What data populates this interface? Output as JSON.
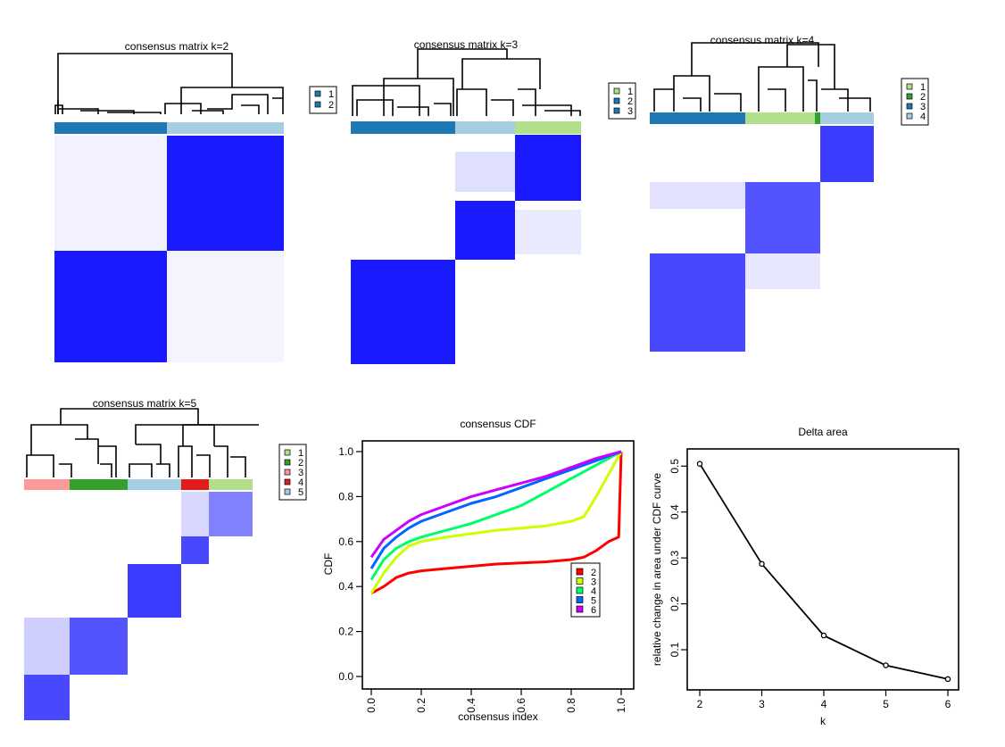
{
  "colors": {
    "dark_blue": "#1f78b4",
    "light_blue": "#a6cee3",
    "light_green": "#b2df8a",
    "green": "#33a02c",
    "pink": "#fb9a99",
    "red": "#e31a1c",
    "matrix_blue": "#0000ff",
    "cdf_lines": [
      "#ff0000",
      "#ccff00",
      "#00ff66",
      "#0066ff",
      "#cc00ff"
    ]
  },
  "chart_data": [
    {
      "type": "heatmap",
      "title": "consensus matrix k=2",
      "legend": [
        "1",
        "2"
      ],
      "legend_colors": [
        "#1f78b4",
        "#1f78b4"
      ],
      "cluster_bar": [
        {
          "cluster": 1,
          "fraction": 0.49,
          "color": "#1f78b4"
        },
        {
          "cluster": 2,
          "fraction": 0.51,
          "color": "#a6cee3"
        }
      ]
    },
    {
      "type": "heatmap",
      "title": "consensus matrix k=3",
      "legend": [
        "1",
        "2",
        "3"
      ],
      "legend_colors": [
        "#b2df8a",
        "#1f78b4",
        "#1f78b4"
      ],
      "cluster_bar": [
        {
          "cluster": 1,
          "fraction": 0.455,
          "color": "#1f78b4"
        },
        {
          "cluster": 2,
          "fraction": 0.26,
          "color": "#a6cee3"
        },
        {
          "cluster": 3,
          "fraction": 0.285,
          "color": "#b2df8a"
        }
      ]
    },
    {
      "type": "heatmap",
      "title": "consensus matrix k=4",
      "legend": [
        "1",
        "2",
        "3",
        "4"
      ],
      "legend_colors": [
        "#b2df8a",
        "#33a02c",
        "#1f78b4",
        "#a6cee3"
      ],
      "cluster_bar": [
        {
          "cluster": 1,
          "fraction": 0.43,
          "color": "#1f78b4"
        },
        {
          "cluster": 2,
          "fraction": 0.31,
          "color": "#b2df8a"
        },
        {
          "cluster": 3,
          "fraction": 0.025,
          "color": "#33a02c"
        },
        {
          "cluster": 4,
          "fraction": 0.235,
          "color": "#a6cee3"
        }
      ]
    },
    {
      "type": "heatmap",
      "title": "consensus matrix k=5",
      "legend": [
        "1",
        "2",
        "3",
        "4",
        "5"
      ],
      "legend_colors": [
        "#b2df8a",
        "#33a02c",
        "#fb9a99",
        "#e31a1c",
        "#a6cee3"
      ],
      "cluster_bar": [
        {
          "cluster": 1,
          "fraction": 0.2,
          "color": "#fb9a99"
        },
        {
          "cluster": 2,
          "fraction": 0.255,
          "color": "#33a02c"
        },
        {
          "cluster": 3,
          "fraction": 0.235,
          "color": "#a6cee3"
        },
        {
          "cluster": 4,
          "fraction": 0.12,
          "color": "#e31a1c"
        },
        {
          "cluster": 5,
          "fraction": 0.19,
          "color": "#b2df8a"
        }
      ]
    },
    {
      "type": "line",
      "title": "consensus CDF",
      "xlabel": "consensus index",
      "ylabel": "CDF",
      "xlim": [
        0,
        1
      ],
      "ylim": [
        0,
        1
      ],
      "x_ticks": [
        "0.0",
        "0.2",
        "0.4",
        "0.6",
        "0.8",
        "1.0"
      ],
      "y_ticks": [
        "0.0",
        "0.2",
        "0.4",
        "0.6",
        "0.8",
        "1.0"
      ],
      "legend_position": "right",
      "series": [
        {
          "name": "2",
          "color": "#ff0000",
          "x": [
            0,
            0.05,
            0.1,
            0.15,
            0.2,
            0.3,
            0.4,
            0.5,
            0.6,
            0.7,
            0.8,
            0.85,
            0.9,
            0.95,
            0.99,
            1.0
          ],
          "y": [
            0.37,
            0.4,
            0.44,
            0.46,
            0.47,
            0.48,
            0.49,
            0.5,
            0.505,
            0.51,
            0.52,
            0.53,
            0.56,
            0.6,
            0.62,
            1.0
          ]
        },
        {
          "name": "3",
          "color": "#ccff00",
          "x": [
            0,
            0.05,
            0.1,
            0.15,
            0.2,
            0.3,
            0.4,
            0.5,
            0.6,
            0.7,
            0.8,
            0.85,
            0.9,
            0.95,
            1.0
          ],
          "y": [
            0.37,
            0.46,
            0.53,
            0.58,
            0.6,
            0.62,
            0.635,
            0.65,
            0.66,
            0.67,
            0.69,
            0.71,
            0.8,
            0.9,
            1.0
          ]
        },
        {
          "name": "4",
          "color": "#00ff66",
          "x": [
            0,
            0.05,
            0.1,
            0.15,
            0.2,
            0.3,
            0.4,
            0.5,
            0.6,
            0.7,
            0.8,
            0.9,
            1.0
          ],
          "y": [
            0.43,
            0.52,
            0.57,
            0.6,
            0.62,
            0.65,
            0.68,
            0.72,
            0.76,
            0.82,
            0.88,
            0.94,
            1.0
          ]
        },
        {
          "name": "5",
          "color": "#0066ff",
          "x": [
            0,
            0.05,
            0.1,
            0.15,
            0.2,
            0.3,
            0.4,
            0.5,
            0.6,
            0.7,
            0.8,
            0.9,
            1.0
          ],
          "y": [
            0.48,
            0.57,
            0.62,
            0.66,
            0.69,
            0.73,
            0.77,
            0.8,
            0.84,
            0.88,
            0.92,
            0.96,
            1.0
          ]
        },
        {
          "name": "6",
          "color": "#cc00ff",
          "x": [
            0,
            0.05,
            0.1,
            0.15,
            0.2,
            0.3,
            0.4,
            0.5,
            0.6,
            0.7,
            0.8,
            0.9,
            1.0
          ],
          "y": [
            0.53,
            0.61,
            0.65,
            0.69,
            0.72,
            0.76,
            0.8,
            0.83,
            0.86,
            0.89,
            0.93,
            0.97,
            1.0
          ]
        }
      ]
    },
    {
      "type": "line",
      "title": "Delta area",
      "xlabel": "k",
      "ylabel": "relative change in area under CDF curve",
      "xlim": [
        2,
        6
      ],
      "ylim": [
        0.03,
        0.52
      ],
      "x_ticks": [
        "2",
        "3",
        "4",
        "5",
        "6"
      ],
      "y_ticks": [
        "0.1",
        "0.2",
        "0.3",
        "0.4",
        "0.5"
      ],
      "x": [
        2,
        3,
        4,
        5,
        6
      ],
      "y": [
        0.505,
        0.287,
        0.131,
        0.066,
        0.036
      ]
    }
  ]
}
